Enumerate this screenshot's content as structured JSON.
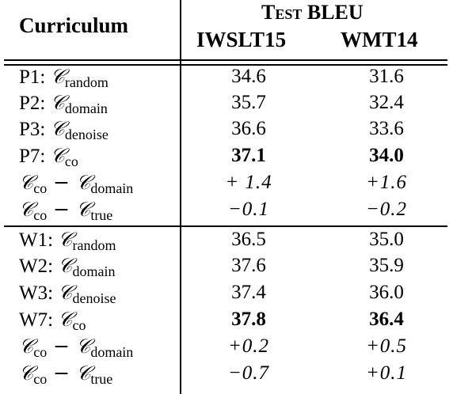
{
  "header": {
    "curriculum": "Curriculum",
    "test_bleu": "Test BLEU",
    "iwslt": "IWSLT15",
    "wmt": "WMT14"
  },
  "rows": [
    {
      "prefix": "P1: ",
      "sym": "𝒞",
      "sub": "random",
      "op": "",
      "sub2": "",
      "iwslt": "34.6",
      "wmt": "31.6",
      "bold": false,
      "ital": false
    },
    {
      "prefix": "P2: ",
      "sym": "𝒞",
      "sub": "domain",
      "op": "",
      "sub2": "",
      "iwslt": "35.7",
      "wmt": "32.4",
      "bold": false,
      "ital": false
    },
    {
      "prefix": "P3: ",
      "sym": "𝒞",
      "sub": "denoise",
      "op": "",
      "sub2": "",
      "iwslt": "36.6",
      "wmt": "33.6",
      "bold": false,
      "ital": false
    },
    {
      "prefix": "P7: ",
      "sym": "𝒞",
      "sub": "co",
      "op": "",
      "sub2": "",
      "iwslt": "37.1",
      "wmt": "34.0",
      "bold": true,
      "ital": false
    },
    {
      "prefix": "",
      "sym": "𝒞",
      "sub": "co",
      "op": " − 𝒞",
      "sub2": "domain",
      "iwslt": "+ 1.4",
      "wmt": "+1.6",
      "bold": false,
      "ital": true
    },
    {
      "prefix": "",
      "sym": "𝒞",
      "sub": "co",
      "op": " − 𝒞",
      "sub2": "true",
      "iwslt": "−0.1",
      "wmt": "−0.2",
      "bold": false,
      "ital": true
    },
    {
      "prefix": "W1: ",
      "sym": "𝒞",
      "sub": "random",
      "op": "",
      "sub2": "",
      "iwslt": "36.5",
      "wmt": "35.0",
      "bold": false,
      "ital": false
    },
    {
      "prefix": "W2: ",
      "sym": "𝒞",
      "sub": "domain",
      "op": "",
      "sub2": "",
      "iwslt": "37.6",
      "wmt": "35.9",
      "bold": false,
      "ital": false
    },
    {
      "prefix": "W3: ",
      "sym": "𝒞",
      "sub": "denoise",
      "op": "",
      "sub2": "",
      "iwslt": "37.4",
      "wmt": "36.0",
      "bold": false,
      "ital": false
    },
    {
      "prefix": "W7: ",
      "sym": "𝒞",
      "sub": "co",
      "op": "",
      "sub2": "",
      "iwslt": "37.8",
      "wmt": "36.4",
      "bold": true,
      "ital": false
    },
    {
      "prefix": "",
      "sym": "𝒞",
      "sub": "co",
      "op": " − 𝒞",
      "sub2": "domain",
      "iwslt": "+0.2",
      "wmt": "+0.5",
      "bold": false,
      "ital": true
    },
    {
      "prefix": "",
      "sym": "𝒞",
      "sub": "co",
      "op": " − 𝒞",
      "sub2": "true",
      "iwslt": "−0.7",
      "wmt": "+0.1",
      "bold": false,
      "ital": true
    }
  ]
}
